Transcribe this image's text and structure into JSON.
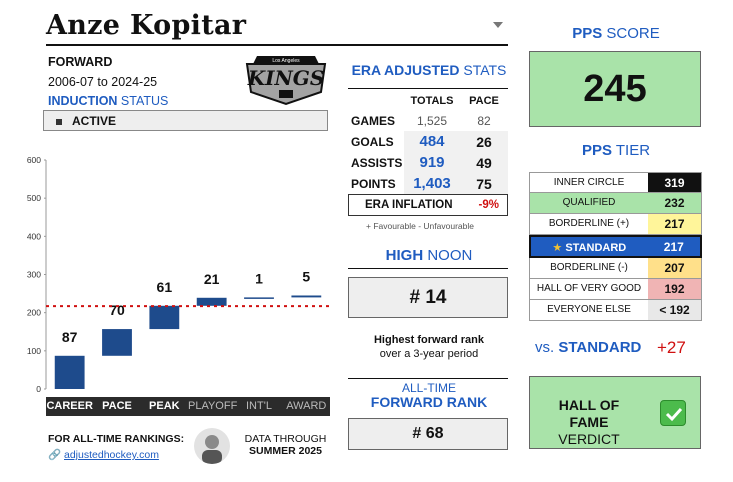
{
  "player": {
    "name": "Anze Kopitar",
    "position": "FORWARD",
    "seasons": "2006-07 to 2024-25",
    "induction_label_1": "INDUCTION",
    "induction_label_2": " STATUS",
    "status": "ACTIVE",
    "team_logo_text": "KINGS",
    "team_logo_small": "Los Angeles"
  },
  "chart_data": {
    "type": "bar",
    "categories": [
      "CAREER",
      "PACE",
      "PEAK",
      "PLAYOFF",
      "INT'L",
      "AWARD"
    ],
    "values": [
      87,
      70,
      61,
      21,
      1,
      5
    ],
    "ylim": [
      0,
      600
    ],
    "yticks": [
      "0",
      "100",
      "200",
      "300",
      "400",
      "500",
      "600"
    ],
    "threshold": 217,
    "bar_color": "#1e4b8c",
    "threshold_color": "#d01010",
    "active_tabs": [
      "CAREER",
      "PACE",
      "PEAK"
    ]
  },
  "era": {
    "title_1": "ERA ADJUSTED",
    "title_2": " STATS",
    "col_totals": "TOTALS",
    "col_pace": "PACE",
    "rows": [
      {
        "label": "GAMES",
        "total": "1,525",
        "pace": "82"
      },
      {
        "label": "GOALS",
        "total": "484",
        "pace": "26"
      },
      {
        "label": "ASSISTS",
        "total": "919",
        "pace": "49"
      },
      {
        "label": "POINTS",
        "total": "1,403",
        "pace": "75"
      }
    ],
    "inflation_label": "ERA INFLATION",
    "inflation_value": "-9%",
    "fav_note": "+ Favourable - Unfavourable"
  },
  "high_noon": {
    "title_1": "HIGH",
    "title_2": " NOON",
    "rank": "# 14",
    "note_1": "Highest forward rank",
    "note_2": "over a 3-year period"
  },
  "alltime": {
    "title_1": "ALL-TIME",
    "title_2": "FORWARD RANK",
    "rank": "# 68"
  },
  "pps": {
    "title_1": "PPS",
    "title_2": " SCORE",
    "score": "245",
    "tier_title_1": "PPS",
    "tier_title_2": " TIER",
    "tiers": [
      {
        "name": "INNER CIRCLE",
        "value": "319",
        "color": "#111111",
        "text": "#ffffff"
      },
      {
        "name": "QUALIFIED",
        "value": "232",
        "color": "#a9e3a9",
        "text": "#111111"
      },
      {
        "name": "BORDERLINE (+)",
        "value": "217",
        "color": "#fff59a",
        "text": "#111111"
      },
      {
        "name": "STANDARD",
        "value": "217",
        "color": "#1f5cc0",
        "text": "#ffffff"
      },
      {
        "name": "BORDERLINE (-)",
        "value": "207",
        "color": "#ffe08a",
        "text": "#111111"
      },
      {
        "name": "HALL OF VERY GOOD",
        "value": "192",
        "color": "#f0b4b4",
        "text": "#111111"
      },
      {
        "name": "EVERYONE ELSE",
        "value": "< 192",
        "color": "#e8e8e8",
        "text": "#111111"
      }
    ],
    "selected_tier": "STANDARD",
    "vs_label_1": "vs.",
    "vs_label_2": " STANDARD",
    "vs_value": "+27",
    "verdict_1": "HALL OF FAME",
    "verdict_2": "VERDICT"
  },
  "footer": {
    "rankings_label": "FOR ALL-TIME RANKINGS:",
    "link": "adjustedhockey.com",
    "data_through_1": "DATA THROUGH",
    "data_through_2": "SUMMER 2025"
  },
  "colors": {
    "accent": "#1f5cc0",
    "green": "#a9e3a9",
    "red": "#d01010"
  }
}
